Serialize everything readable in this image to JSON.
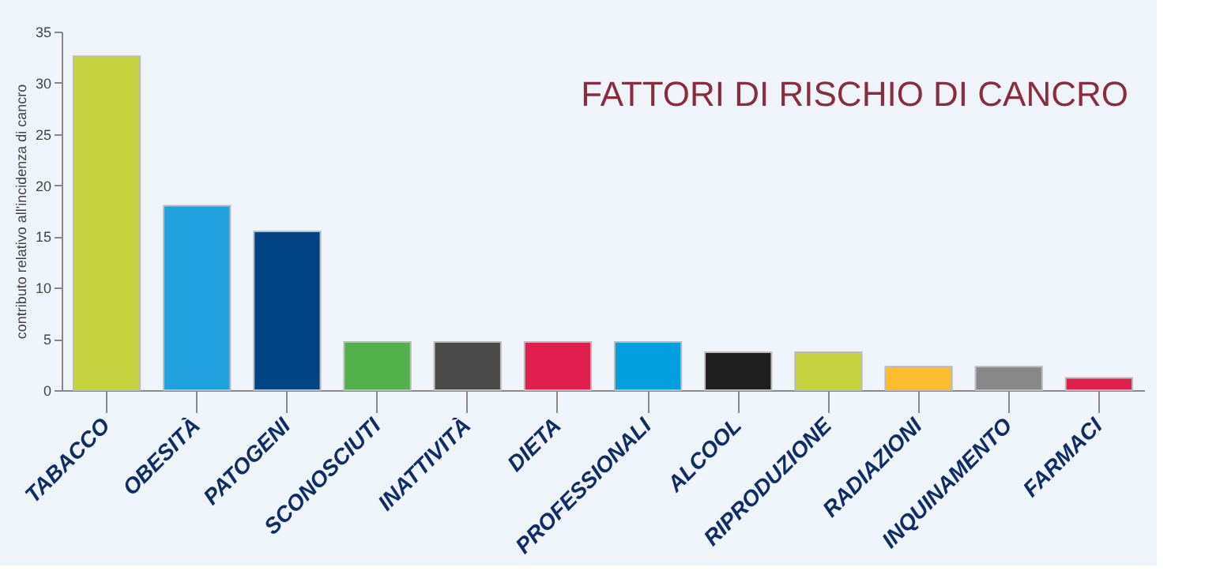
{
  "chart_data": {
    "type": "bar",
    "title": "FATTORI DI RISCHIO DI CANCRO",
    "ylabel": "contributo relativo all'incidenza di cancro",
    "categories": [
      "TABACCO",
      "OBESITÀ",
      "PATOGENI",
      "SCONOSCIUTI",
      "INATTIVITÀ",
      "DIETA",
      "PROFESSIONALI",
      "ALCOOL",
      "RIPRODUZIONE",
      "RADIAZIONI",
      "INQUINAMENTO",
      "FARMACI"
    ],
    "values": [
      32.6,
      18.0,
      15.5,
      4.7,
      4.7,
      4.7,
      4.7,
      3.7,
      3.7,
      2.3,
      2.3,
      1.2
    ],
    "colors": [
      "#c5d43e",
      "#1fa2de",
      "#004483",
      "#52b04a",
      "#4a4a4a",
      "#e01f4e",
      "#00a0e0",
      "#1e1e1e",
      "#c5d43e",
      "#fbbd2e",
      "#888888",
      "#e01f4e"
    ],
    "ylim": [
      0,
      35
    ],
    "yticks": [
      0,
      5,
      10,
      15,
      20,
      25,
      30,
      35
    ],
    "grid": false
  }
}
